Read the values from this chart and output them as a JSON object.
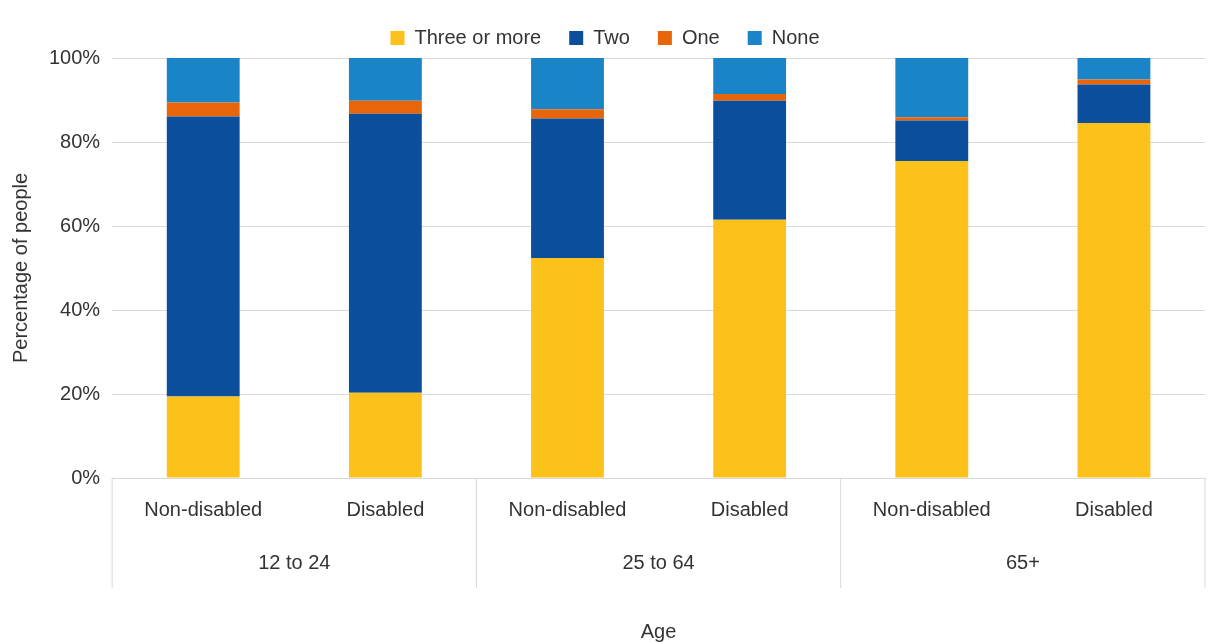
{
  "chart_data": {
    "type": "bar",
    "stacked": true,
    "xlabel": "Age",
    "ylabel": "Percentage of people",
    "categories": [
      "Non-disabled",
      "Disabled",
      "Non-disabled",
      "Disabled",
      "Non-disabled",
      "Disabled"
    ],
    "series": [
      {
        "name": "Three or more",
        "color": "#fcc21b",
        "values": [
          19.4,
          20.3,
          52.4,
          61.5,
          75.5,
          84.5
        ]
      },
      {
        "name": "Two",
        "color": "#0b4f9c",
        "values": [
          66.7,
          66.4,
          33.2,
          28.3,
          9.6,
          9.2
        ]
      },
      {
        "name": "One",
        "color": "#e8650a",
        "values": [
          3.3,
          3.1,
          2.2,
          1.6,
          0.8,
          1.2
        ]
      },
      {
        "name": "None",
        "color": "#1a84c9",
        "values": [
          10.6,
          10.2,
          12.2,
          8.6,
          14.1,
          5.1
        ]
      }
    ],
    "ylim": [
      0,
      100
    ],
    "yticks": [
      {
        "value": 0,
        "label": "0%"
      },
      {
        "value": 20,
        "label": "20%"
      },
      {
        "value": 40,
        "label": "40%"
      },
      {
        "value": 60,
        "label": "60%"
      },
      {
        "value": 80,
        "label": "80%"
      },
      {
        "value": 100,
        "label": "100%"
      }
    ],
    "grid": "y",
    "legend": "top",
    "annotations": [
      "12 to 24",
      "25 to 64",
      "65+"
    ]
  }
}
